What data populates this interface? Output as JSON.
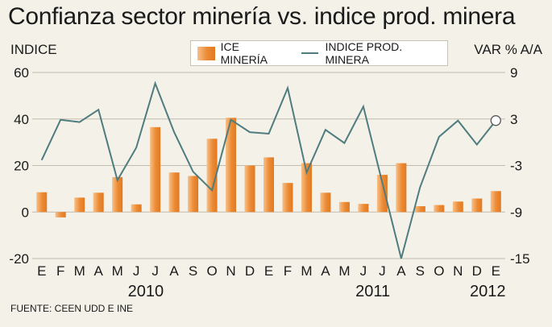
{
  "title": "Confianza sector minería vs. indice prod. minera",
  "left_axis_title": "INDICE",
  "right_axis_title": "VAR % A/A",
  "legend": {
    "bar_label": "ICE MINERÍA",
    "line_label": "INDICE PROD. MINERA"
  },
  "source": "FUENTE: CEEN UDD E INE",
  "colors": {
    "bar": "#ec8a32",
    "line": "#4e7c7f",
    "background": "#f4f1e8",
    "grid": "#c2bcae"
  },
  "chart_data": {
    "type": "bar+line",
    "x": [
      "E",
      "F",
      "M",
      "A",
      "M",
      "J",
      "J",
      "A",
      "S",
      "O",
      "N",
      "D",
      "E",
      "F",
      "M",
      "A",
      "M",
      "J",
      "J",
      "A",
      "S",
      "O",
      "N",
      "D",
      "E"
    ],
    "year_labels": [
      "2010",
      "2011",
      "2012"
    ],
    "left_axis": {
      "label": "INDICE",
      "ylim": [
        -20,
        60
      ],
      "ticks": [
        -20,
        0,
        20,
        40,
        60
      ]
    },
    "right_axis": {
      "label": "VAR % A/A",
      "ylim": [
        -15,
        9
      ],
      "ticks": [
        -15,
        -9,
        -3,
        3,
        9
      ]
    },
    "grid": true,
    "legend_position": "top-center",
    "series": [
      {
        "name": "ICE MINERÍA",
        "type": "bar",
        "axis": "left",
        "values": [
          8.5,
          -2.3,
          6.2,
          8.3,
          15,
          3.3,
          36.5,
          17,
          15.5,
          31.5,
          40.5,
          20,
          23.5,
          12.5,
          21,
          8.3,
          4.3,
          3.5,
          16,
          21,
          2.5,
          3,
          4.5,
          5.8,
          9
        ]
      },
      {
        "name": "INDICE PROD. MINERA",
        "type": "line",
        "axis": "right",
        "values": [
          -2.3,
          2.9,
          2.6,
          4.2,
          -4.9,
          -0.7,
          7.6,
          1.3,
          -3.8,
          -6.2,
          2.9,
          1.3,
          1.1,
          7.0,
          -3.9,
          1.6,
          -0.1,
          4.6,
          -5.2,
          -15.0,
          -5.8,
          0.7,
          2.8,
          -0.3,
          2.8
        ]
      }
    ]
  }
}
